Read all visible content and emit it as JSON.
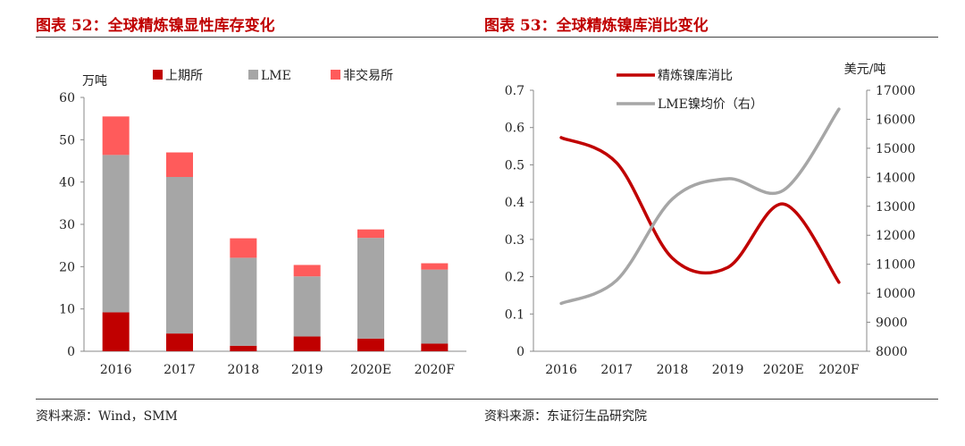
{
  "left": {
    "title": "图表 52：全球精炼镍显性库存变化",
    "source": "资料来源：Wind，SMM"
  },
  "right": {
    "title": "图表 53：全球精炼镍库消比变化",
    "source": "资料来源：东证衍生品研究院"
  },
  "chart_data": [
    {
      "type": "bar",
      "stacked": true,
      "ylabel": "万吨",
      "ylim": [
        0,
        60
      ],
      "yticks": [
        "0",
        "10",
        "20",
        "30",
        "40",
        "50",
        "60"
      ],
      "categories": [
        "2016",
        "2017",
        "2018",
        "2019",
        "2020E",
        "2020F"
      ],
      "legend_position": "top",
      "series": [
        {
          "name": "上期所",
          "color": "#c00000",
          "values": [
            9.2,
            4.2,
            1.3,
            3.5,
            3.0,
            1.8
          ]
        },
        {
          "name": "LME",
          "color": "#a6a6a6",
          "values": [
            37.2,
            37.0,
            20.8,
            14.2,
            23.8,
            17.5
          ]
        },
        {
          "name": "非交易所",
          "color": "#ff5b5b",
          "values": [
            9.1,
            5.8,
            4.6,
            2.7,
            2.0,
            1.5
          ]
        }
      ]
    },
    {
      "type": "line",
      "categories": [
        "2016",
        "2017",
        "2018",
        "2019",
        "2020E",
        "2020F"
      ],
      "legend_position": "top",
      "y_left": {
        "ylim": [
          0,
          0.7
        ],
        "yticks": [
          "0",
          "0.1",
          "0.2",
          "0.3",
          "0.4",
          "0.5",
          "0.6",
          "0.7"
        ]
      },
      "y_right": {
        "label": "美元/吨",
        "ylim": [
          8000,
          17000
        ],
        "yticks": [
          "8000",
          "9000",
          "10000",
          "11000",
          "12000",
          "13000",
          "14000",
          "15000",
          "16000",
          "17000"
        ]
      },
      "series": [
        {
          "name": "精炼镍库消比",
          "color": "#c00000",
          "axis": "left",
          "values": [
            0.573,
            0.505,
            0.25,
            0.225,
            0.395,
            0.185
          ]
        },
        {
          "name": "LME镍均价（右）",
          "color": "#a6a6a6",
          "axis": "right",
          "values": [
            9650,
            10450,
            13250,
            13950,
            13550,
            16350
          ]
        }
      ]
    }
  ]
}
